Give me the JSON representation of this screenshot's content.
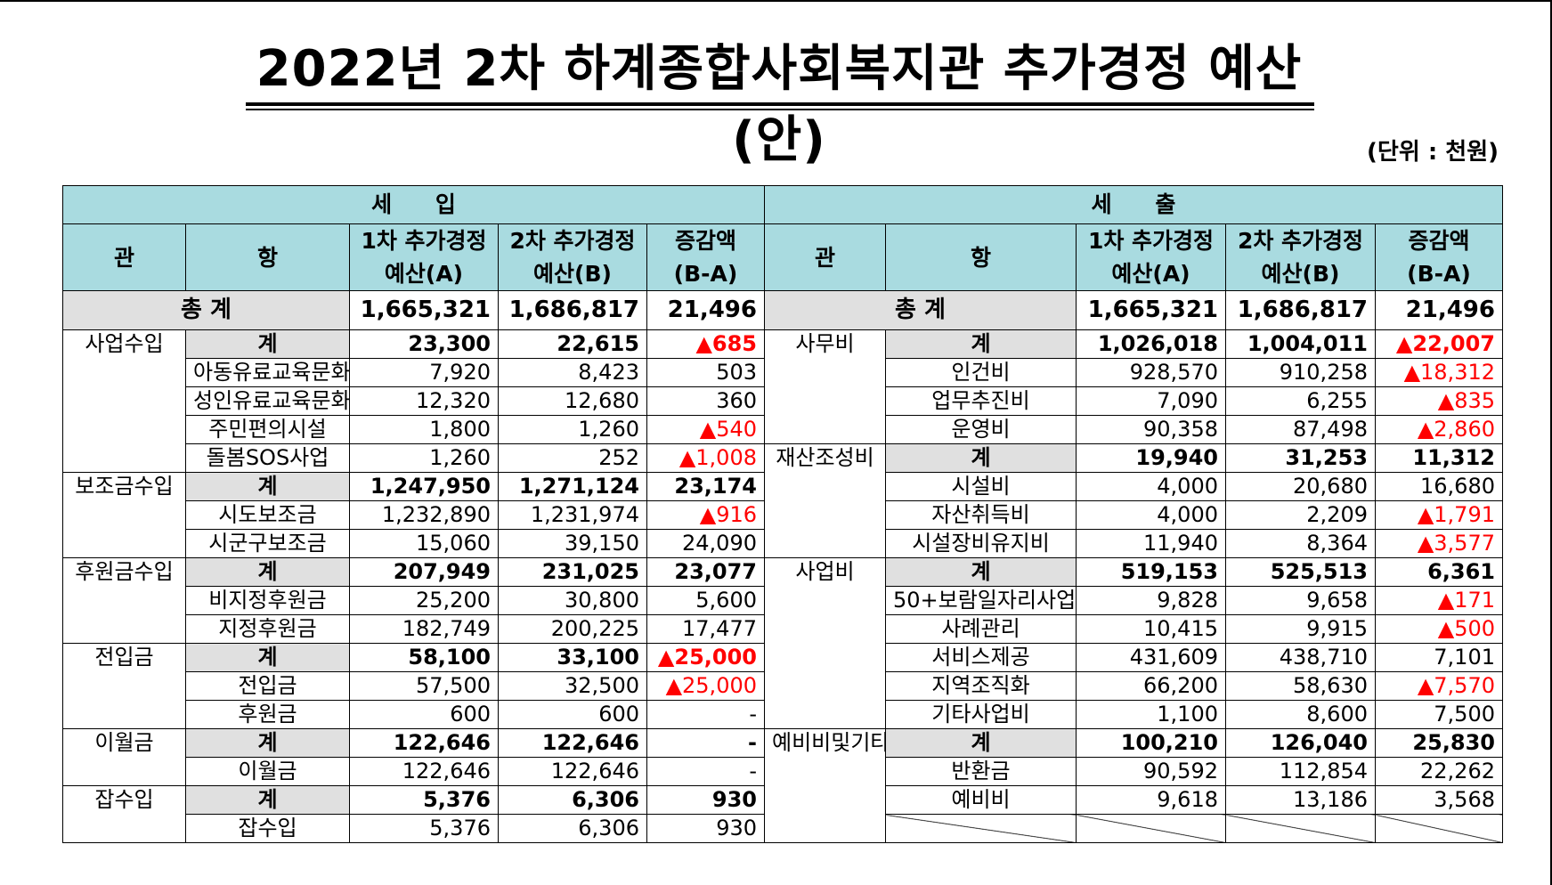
{
  "title": "2022년 2차 하계종합사회복지관 추가경정 예산(안)",
  "unit": "(단위 : 천원)",
  "headers": {
    "income": "세 입",
    "expense": "세 출",
    "gwan": "관",
    "hang": "항",
    "col_a_line1": "1차 추가경정",
    "col_a_line2": "예산(A)",
    "col_b_line1": "2차 추가경정",
    "col_b_line2": "예산(B)",
    "col_diff_line1": "증감액",
    "col_diff_line2": "(B-A)"
  },
  "totals": {
    "label": "총 계",
    "income": {
      "a": "1,665,321",
      "b": "1,686,817",
      "diff": "21,496"
    },
    "expense": {
      "a": "1,665,321",
      "b": "1,686,817",
      "diff": "21,496"
    }
  },
  "rows": [
    {
      "left": {
        "gwan": "사업수입",
        "hang": "계",
        "a": "23,300",
        "b": "22,615",
        "diff": "▲685"
      },
      "right": {
        "gwan": "사무비",
        "hang": "계",
        "a": "1,026,018",
        "b": "1,004,011",
        "diff": "▲22,007"
      }
    },
    {
      "left": {
        "hang": "아동유료교육문화",
        "a": "7,920",
        "b": "8,423",
        "diff": "503"
      },
      "right": {
        "hang": "인건비",
        "a": "928,570",
        "b": "910,258",
        "diff": "▲18,312"
      }
    },
    {
      "left": {
        "hang": "성인유료교육문화",
        "a": "12,320",
        "b": "12,680",
        "diff": "360"
      },
      "right": {
        "hang": "업무추진비",
        "a": "7,090",
        "b": "6,255",
        "diff": "▲835"
      }
    },
    {
      "left": {
        "hang": "주민편의시설",
        "a": "1,800",
        "b": "1,260",
        "diff": "▲540"
      },
      "right": {
        "hang": "운영비",
        "a": "90,358",
        "b": "87,498",
        "diff": "▲2,860"
      }
    },
    {
      "left": {
        "hang": "돌봄SOS사업",
        "a": "1,260",
        "b": "252",
        "diff": "▲1,008"
      },
      "right": {
        "gwan": "재산조성비",
        "hang": "계",
        "a": "19,940",
        "b": "31,253",
        "diff": "11,312"
      }
    },
    {
      "left": {
        "gwan": "보조금수입",
        "hang": "계",
        "a": "1,247,950",
        "b": "1,271,124",
        "diff": "23,174"
      },
      "right": {
        "hang": "시설비",
        "a": "4,000",
        "b": "20,680",
        "diff": "16,680"
      }
    },
    {
      "left": {
        "hang": "시도보조금",
        "a": "1,232,890",
        "b": "1,231,974",
        "diff": "▲916"
      },
      "right": {
        "hang": "자산취득비",
        "a": "4,000",
        "b": "2,209",
        "diff": "▲1,791"
      }
    },
    {
      "left": {
        "hang": "시군구보조금",
        "a": "15,060",
        "b": "39,150",
        "diff": "24,090"
      },
      "right": {
        "hang": "시설장비유지비",
        "a": "11,940",
        "b": "8,364",
        "diff": "▲3,577"
      }
    },
    {
      "left": {
        "gwan": "후원금수입",
        "hang": "계",
        "a": "207,949",
        "b": "231,025",
        "diff": "23,077"
      },
      "right": {
        "gwan": "사업비",
        "hang": "계",
        "a": "519,153",
        "b": "525,513",
        "diff": "6,361"
      }
    },
    {
      "left": {
        "hang": "비지정후원금",
        "a": "25,200",
        "b": "30,800",
        "diff": "5,600"
      },
      "right": {
        "hang": "50+보람일자리사업",
        "a": "9,828",
        "b": "9,658",
        "diff": "▲171"
      }
    },
    {
      "left": {
        "hang": "지정후원금",
        "a": "182,749",
        "b": "200,225",
        "diff": "17,477"
      },
      "right": {
        "hang": "사례관리",
        "a": "10,415",
        "b": "9,915",
        "diff": "▲500"
      }
    },
    {
      "left": {
        "gwan": "전입금",
        "hang": "계",
        "a": "58,100",
        "b": "33,100",
        "diff": "▲25,000"
      },
      "right": {
        "hang": "서비스제공",
        "a": "431,609",
        "b": "438,710",
        "diff": "7,101"
      }
    },
    {
      "left": {
        "hang": "전입금",
        "a": "57,500",
        "b": "32,500",
        "diff": "▲25,000"
      },
      "right": {
        "hang": "지역조직화",
        "a": "66,200",
        "b": "58,630",
        "diff": "▲7,570"
      }
    },
    {
      "left": {
        "hang": "후원금",
        "a": "600",
        "b": "600",
        "diff": "-"
      },
      "right": {
        "hang": "기타사업비",
        "a": "1,100",
        "b": "8,600",
        "diff": "7,500"
      }
    },
    {
      "left": {
        "gwan": "이월금",
        "hang": "계",
        "a": "122,646",
        "b": "122,646",
        "diff": "-"
      },
      "right": {
        "gwan": "예비비및기타",
        "hang": "계",
        "a": "100,210",
        "b": "126,040",
        "diff": "25,830"
      }
    },
    {
      "left": {
        "hang": "이월금",
        "a": "122,646",
        "b": "122,646",
        "diff": "-"
      },
      "right": {
        "hang": "반환금",
        "a": "90,592",
        "b": "112,854",
        "diff": "22,262"
      }
    },
    {
      "left": {
        "gwan": "잡수입",
        "hang": "계",
        "a": "5,376",
        "b": "6,306",
        "diff": "930"
      },
      "right": {
        "hang": "예비비",
        "a": "9,618",
        "b": "13,186",
        "diff": "3,568"
      }
    },
    {
      "left": {
        "hang": "잡수입",
        "a": "5,376",
        "b": "6,306",
        "diff": "930"
      },
      "right": null
    }
  ],
  "colors": {
    "header_bg": "#a9dbe0",
    "subtotal_bg": "#e0e0e0",
    "negative": "#ff0000"
  }
}
